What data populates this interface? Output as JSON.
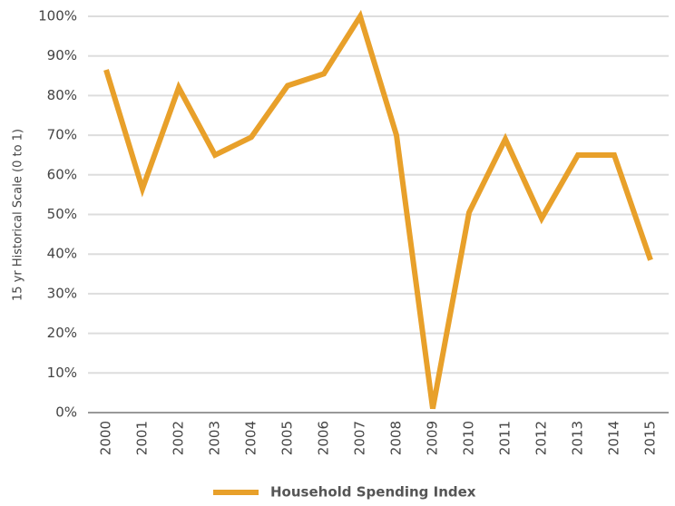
{
  "chart_data": {
    "type": "line",
    "y_label": "15 yr Historical Scale (0 to 1)",
    "categories": [
      "2000",
      "2001",
      "2002",
      "2003",
      "2004",
      "2005",
      "2006",
      "2007",
      "2008",
      "2009",
      "2010",
      "2011",
      "2012",
      "2013",
      "2014",
      "2015"
    ],
    "series": [
      {
        "name": "Household Spending Index",
        "color": "#e8a02a",
        "values": [
          86.5,
          56.5,
          82,
          65,
          69.5,
          82.5,
          85.5,
          100,
          70,
          1,
          50.5,
          69,
          49,
          65,
          65,
          38.5
        ]
      }
    ],
    "ylim": [
      0,
      100
    ],
    "yticks": [
      {
        "value": 0,
        "label": "0%"
      },
      {
        "value": 10,
        "label": "10%"
      },
      {
        "value": 20,
        "label": "20%"
      },
      {
        "value": 30,
        "label": "30%"
      },
      {
        "value": 40,
        "label": "40%"
      },
      {
        "value": 50,
        "label": "50%"
      },
      {
        "value": 60,
        "label": "60%"
      },
      {
        "value": 70,
        "label": "70%"
      },
      {
        "value": 80,
        "label": "80%"
      },
      {
        "value": 90,
        "label": "90%"
      },
      {
        "value": 100,
        "label": "100%"
      }
    ],
    "grid": true,
    "legend": "bottom"
  }
}
